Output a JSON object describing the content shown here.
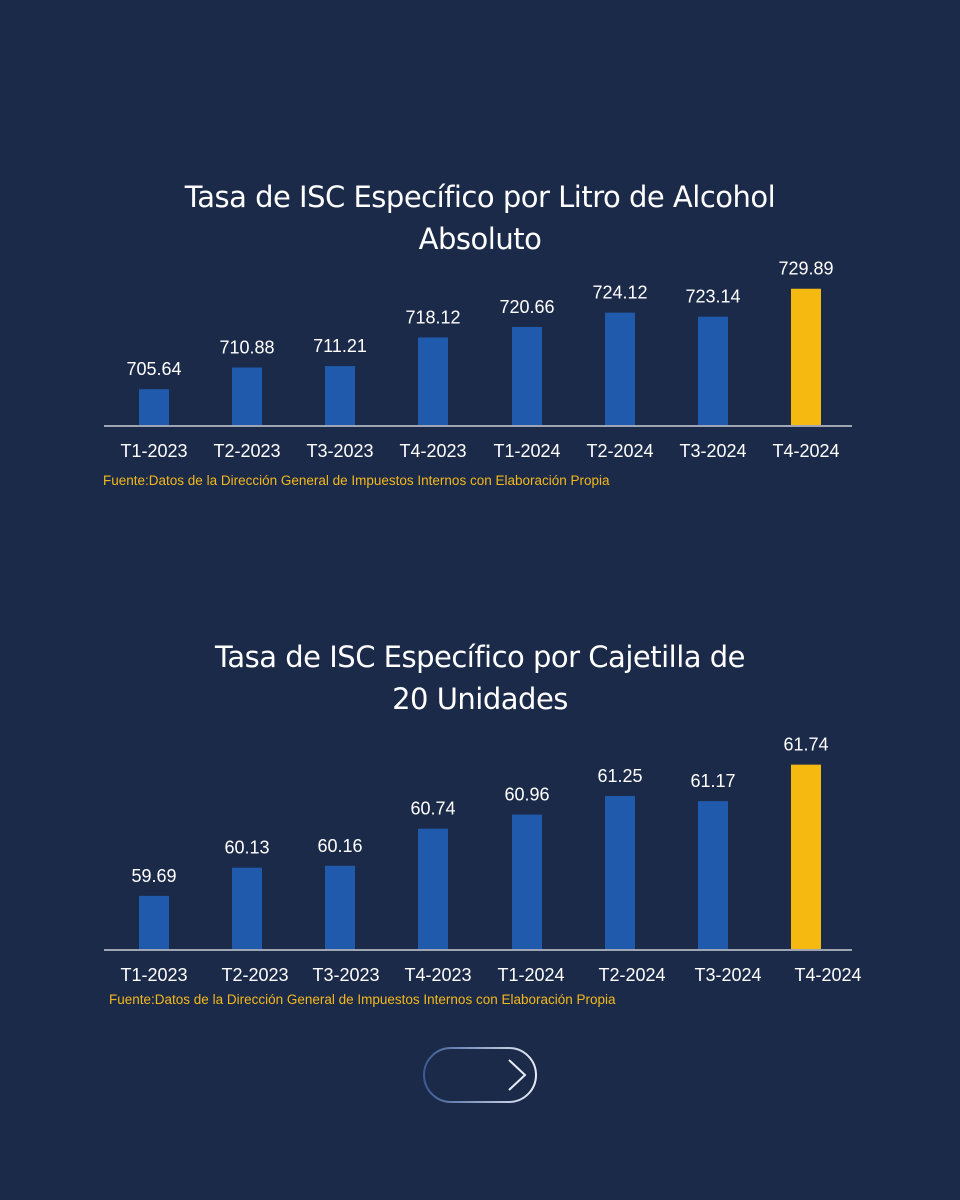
{
  "colors": {
    "background": "#1c2a4a",
    "bar": "#1f5aad",
    "bar_highlight": "#f5b90f",
    "text": "#ffffff",
    "source": "#f3b81b",
    "axis": "#c8ccd6"
  },
  "chart_data": [
    {
      "type": "bar",
      "title": "Tasa de ISC Específico por Litro de Alcohol Absoluto",
      "categories": [
        "T1-2023",
        "T2-2023",
        "T3-2023",
        "T4-2023",
        "T1-2024",
        "T2-2024",
        "T3-2024",
        "T4-2024"
      ],
      "values": [
        705.64,
        710.88,
        711.21,
        718.12,
        720.66,
        724.12,
        723.14,
        729.89
      ],
      "value_labels": [
        "705.64",
        "710.88",
        "711.21",
        "718.12",
        "720.66",
        "724.12",
        "723.14",
        "729.89"
      ],
      "highlight_index": 7,
      "ylim": [
        697,
        732
      ],
      "xlabel": "",
      "ylabel": "",
      "source": "Fuente:Datos de la Dirección General de Impuestos Internos con Elaboración Propia"
    },
    {
      "type": "bar",
      "title": "Tasa de ISC Específico por Cajetilla de 20 Unidades",
      "categories": [
        "T1-2023",
        "T2-2023",
        "T3-2023",
        "T4-2023",
        "T1-2024",
        "T2-2024",
        "T3-2024",
        "T4-2024"
      ],
      "values": [
        59.69,
        60.13,
        60.16,
        60.74,
        60.96,
        61.25,
        61.17,
        61.74
      ],
      "value_labels": [
        "59.69",
        "60.13",
        "60.16",
        "60.74",
        "60.96",
        "61.25",
        "61.17",
        "61.74"
      ],
      "highlight_index": 7,
      "ylim": [
        58.86,
        62.0
      ],
      "xlabel": "",
      "ylabel": "",
      "source": "Fuente:Datos de la Dirección General de Impuestos Internos con Elaboración Propia"
    }
  ],
  "titles": {
    "chart1_line1": "Tasa de ISC Específico por Litro de Alcohol",
    "chart1_line2": "Absoluto",
    "chart2_line1": "Tasa de ISC Específico por Cajetilla de",
    "chart2_line2": "20 Unidades"
  },
  "next_button": {
    "icon": "arrow-right-icon"
  }
}
